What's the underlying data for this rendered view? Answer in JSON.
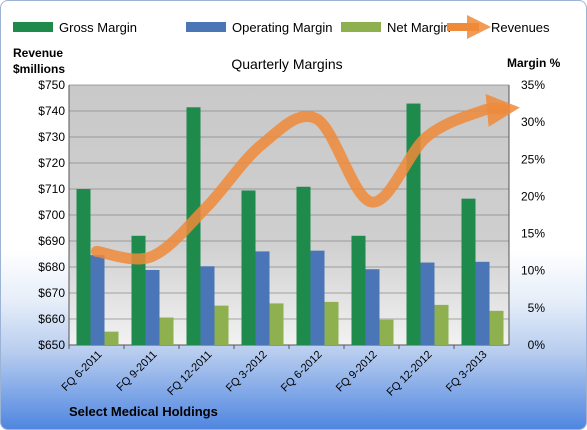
{
  "chart_data": {
    "type": "bar",
    "title": "Quarterly Margins",
    "company": "Select Medical Holdings",
    "left_axis_label_line1": "Revenue",
    "left_axis_label_line2": "$millions",
    "right_axis_label": "Margin %",
    "categories": [
      "FQ 6-2011",
      "FQ 9-2011",
      "FQ 12-2011",
      "FQ 3-2012",
      "FQ 6-2012",
      "FQ 9-2012",
      "FQ 12-2012",
      "FQ 3-2013"
    ],
    "left_axis": {
      "min": 650,
      "max": 750,
      "step": 10,
      "tick_labels": [
        "$650",
        "$660",
        "$670",
        "$680",
        "$690",
        "$700",
        "$710",
        "$720",
        "$730",
        "$740",
        "$750"
      ]
    },
    "right_axis": {
      "min": 0,
      "max": 35,
      "step": 5,
      "tick_labels": [
        "0%",
        "5%",
        "10%",
        "15%",
        "20%",
        "25%",
        "30%",
        "35%"
      ]
    },
    "series": [
      {
        "name": "Gross Margin",
        "axis": "right",
        "color": "#1e8a4c",
        "values": [
          21.0,
          14.7,
          32.0,
          20.8,
          21.3,
          14.7,
          32.5,
          19.7
        ]
      },
      {
        "name": "Operating Margin",
        "axis": "right",
        "color": "#4a76b8",
        "values": [
          12.1,
          10.1,
          10.6,
          12.6,
          12.7,
          10.2,
          11.1,
          11.2
        ]
      },
      {
        "name": "Net Margin",
        "axis": "right",
        "color": "#8fb04f",
        "values": [
          1.8,
          3.7,
          5.3,
          5.6,
          5.8,
          3.4,
          5.4,
          4.6
        ]
      },
      {
        "name": "Revenues",
        "axis": "left",
        "color": "#ef8a3a",
        "type": "line",
        "values": [
          686,
          684,
          703,
          727,
          737,
          705,
          730,
          740
        ]
      }
    ],
    "legend_position": "top",
    "grid": true
  }
}
